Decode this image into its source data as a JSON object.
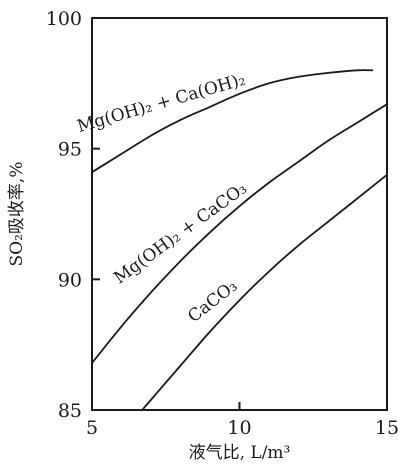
{
  "chart_data": {
    "type": "line",
    "xlabel": "液气比, L/m³",
    "ylabel": "SO₂吸收率,%",
    "xlim": [
      5,
      15
    ],
    "ylim": [
      85,
      100
    ],
    "grid": false,
    "xticks": [
      "5",
      "10",
      "15"
    ],
    "yticks": [
      "85",
      "90",
      "95",
      "100"
    ],
    "series": [
      {
        "name": "Mg(OH)₂ + Ca(OH)₂",
        "x": [
          5,
          6,
          7,
          8,
          9,
          10,
          11,
          12,
          13,
          14,
          14.5
        ],
        "y": [
          94.1,
          94.8,
          95.5,
          96.1,
          96.6,
          97.1,
          97.5,
          97.75,
          97.9,
          98.0,
          98.0
        ]
      },
      {
        "name": "Mg(OH)₂ + CaCO₃",
        "x": [
          5,
          6,
          7,
          8,
          9,
          10,
          11,
          12,
          13,
          14,
          15
        ],
        "y": [
          86.8,
          88.2,
          89.5,
          90.7,
          91.8,
          92.8,
          93.7,
          94.5,
          95.3,
          96.0,
          96.7
        ]
      },
      {
        "name": "CaCO₃",
        "x": [
          6.7,
          8,
          9,
          10,
          11,
          12,
          13,
          14,
          15
        ],
        "y": [
          85.0,
          86.7,
          88.0,
          89.2,
          90.3,
          91.3,
          92.2,
          93.1,
          94.0
        ]
      }
    ]
  }
}
